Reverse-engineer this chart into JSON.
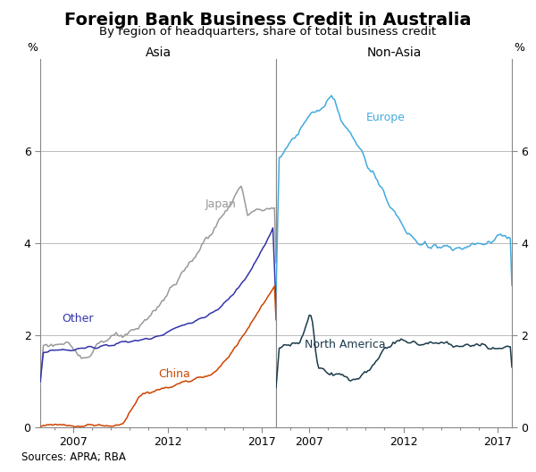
{
  "title": "Foreign Bank Business Credit in Australia",
  "subtitle": "By region of headquarters, share of total business credit",
  "left_panel_title": "Asia",
  "right_panel_title": "Non-Asia",
  "ylabel_left": "%",
  "ylabel_right": "%",
  "source": "Sources: APRA; RBA",
  "ylim": [
    0,
    8
  ],
  "yticks": [
    0,
    2,
    4,
    6
  ],
  "date_start": 2005.25,
  "date_end": 2017.75,
  "xticks": [
    2007,
    2012,
    2017
  ],
  "colors": {
    "japan": "#999999",
    "other": "#3333aa",
    "china": "#cc4400",
    "europe": "#44aadd",
    "north_america": "#1a3a4a"
  },
  "linewidth": 1.1,
  "title_fontsize": 14,
  "subtitle_fontsize": 9.5,
  "tick_fontsize": 9,
  "label_fontsize": 9,
  "panel_title_fontsize": 10,
  "background_color": "#ffffff",
  "grid_color": "#bbbbbb",
  "source_fontsize": 8.5
}
